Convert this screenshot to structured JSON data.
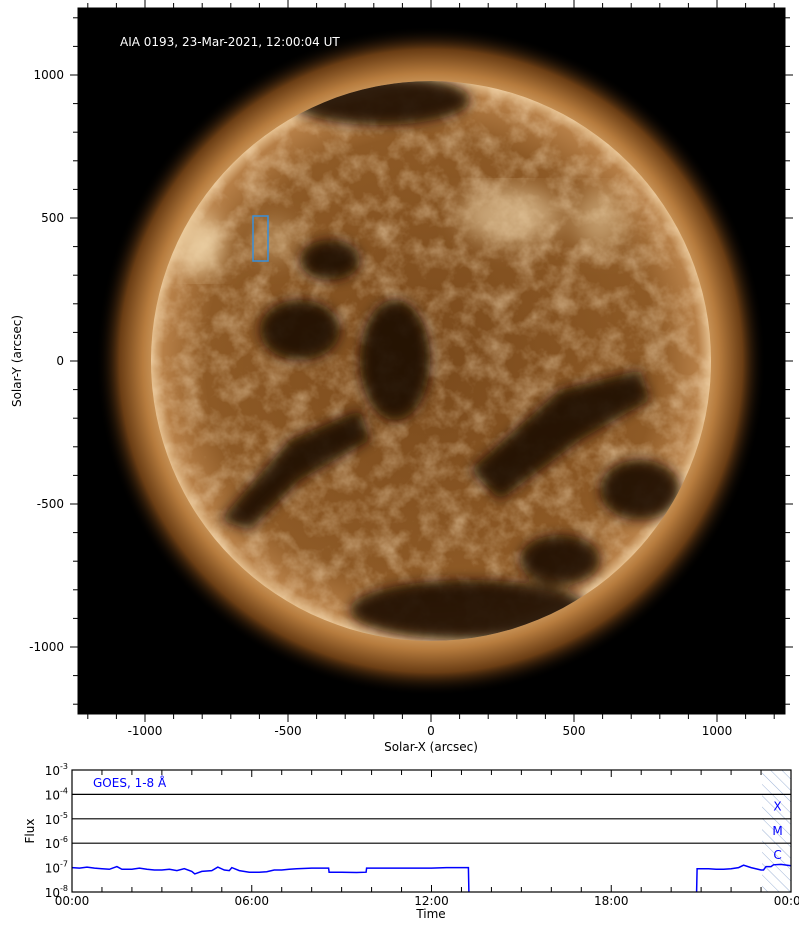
{
  "chart_data": [
    {
      "type": "heatmap",
      "image_title": "AIA 0193, 23-Mar-2021, 12:00:04 UT",
      "xlabel": "Solar-X (arcsec)",
      "ylabel": "Solar-Y (arcsec)",
      "xlim": [
        -1235,
        1235
      ],
      "ylim": [
        -1235,
        1235
      ],
      "xticks": [
        -1000,
        -500,
        0,
        500,
        1000
      ],
      "yticks": [
        -1000,
        -500,
        0,
        500,
        1000
      ],
      "colormap": "sdoaia193",
      "box": {
        "x": [
          -620,
          -570
        ],
        "y": [
          350,
          505
        ],
        "color": "#3a8fd8"
      }
    },
    {
      "type": "line",
      "title": "GOES, 1-8 Å",
      "xlabel": "Time",
      "ylabel": "Flux",
      "yscale": "log",
      "ylim": [
        1e-08,
        0.001
      ],
      "yticks": [
        "10-8",
        "10-7",
        "10-6",
        "10-5",
        "10-4",
        "10-3"
      ],
      "xticks": [
        "00:00",
        "06:00",
        "12:00",
        "18:00",
        "00:00"
      ],
      "class_lines": [
        0.0001,
        1e-05,
        1e-06
      ],
      "class_labels": [
        "X",
        "M",
        "C"
      ],
      "hatched_from": "23:02",
      "color": "#0000ff",
      "segments": [
        [
          [
            "00:00",
            1e-07
          ],
          [
            "00:15",
            9.5e-08
          ],
          [
            "00:30",
            1.05e-07
          ],
          [
            "00:45",
            9.5e-08
          ],
          [
            "01:00",
            9e-08
          ],
          [
            "01:15",
            8.5e-08
          ],
          [
            "01:30",
            1.1e-07
          ],
          [
            "01:40",
            8.5e-08
          ],
          [
            "02:00",
            8.5e-08
          ],
          [
            "02:15",
            9.5e-08
          ],
          [
            "02:30",
            8.5e-08
          ],
          [
            "02:45",
            8e-08
          ],
          [
            "03:00",
            8e-08
          ],
          [
            "03:15",
            8.5e-08
          ],
          [
            "03:30",
            7.5e-08
          ],
          [
            "03:45",
            9e-08
          ],
          [
            "04:00",
            7e-08
          ],
          [
            "04:06",
            5.5e-08
          ],
          [
            "04:20",
            7e-08
          ],
          [
            "04:40",
            7.5e-08
          ],
          [
            "04:52",
            1.05e-07
          ],
          [
            "05:05",
            8e-08
          ],
          [
            "05:15",
            7.5e-08
          ],
          [
            "05:20",
            1e-07
          ],
          [
            "05:35",
            7.5e-08
          ],
          [
            "05:55",
            6.5e-08
          ],
          [
            "06:15",
            6.5e-08
          ],
          [
            "06:30",
            6.8e-08
          ],
          [
            "06:45",
            8e-08
          ],
          [
            "07:00",
            8e-08
          ],
          [
            "07:15",
            8.5e-08
          ],
          [
            "07:30",
            9e-08
          ],
          [
            "08:00",
            9.5e-08
          ],
          [
            "08:34",
            9.5e-08
          ],
          [
            "08:35",
            6.5e-08
          ],
          [
            "09:00",
            6.5e-08
          ],
          [
            "09:30",
            6.3e-08
          ],
          [
            "09:49",
            6.5e-08
          ],
          [
            "09:50",
            9.5e-08
          ],
          [
            "10:30",
            9.5e-08
          ],
          [
            "11:00",
            9.5e-08
          ],
          [
            "11:30",
            9.5e-08
          ],
          [
            "12:00",
            9.5e-08
          ],
          [
            "12:30",
            1e-07
          ],
          [
            "13:00",
            1e-07
          ],
          [
            "13:14",
            1e-07
          ],
          [
            "13:15",
            1e-08
          ]
        ],
        [
          [
            "20:51",
            1e-08
          ],
          [
            "20:52",
            9e-08
          ],
          [
            "21:15",
            9e-08
          ],
          [
            "21:30",
            8.5e-08
          ],
          [
            "21:45",
            8.5e-08
          ],
          [
            "22:00",
            9e-08
          ],
          [
            "22:15",
            1e-07
          ],
          [
            "22:25",
            1.25e-07
          ],
          [
            "22:40",
            1e-07
          ],
          [
            "23:00",
            8e-08
          ],
          [
            "23:05",
            8e-08
          ],
          [
            "23:10",
            1.1e-07
          ],
          [
            "23:20",
            1.1e-07
          ],
          [
            "23:25",
            1.3e-07
          ],
          [
            "23:40",
            1.35e-07
          ],
          [
            "24:00",
            1.2e-07
          ]
        ]
      ]
    }
  ]
}
